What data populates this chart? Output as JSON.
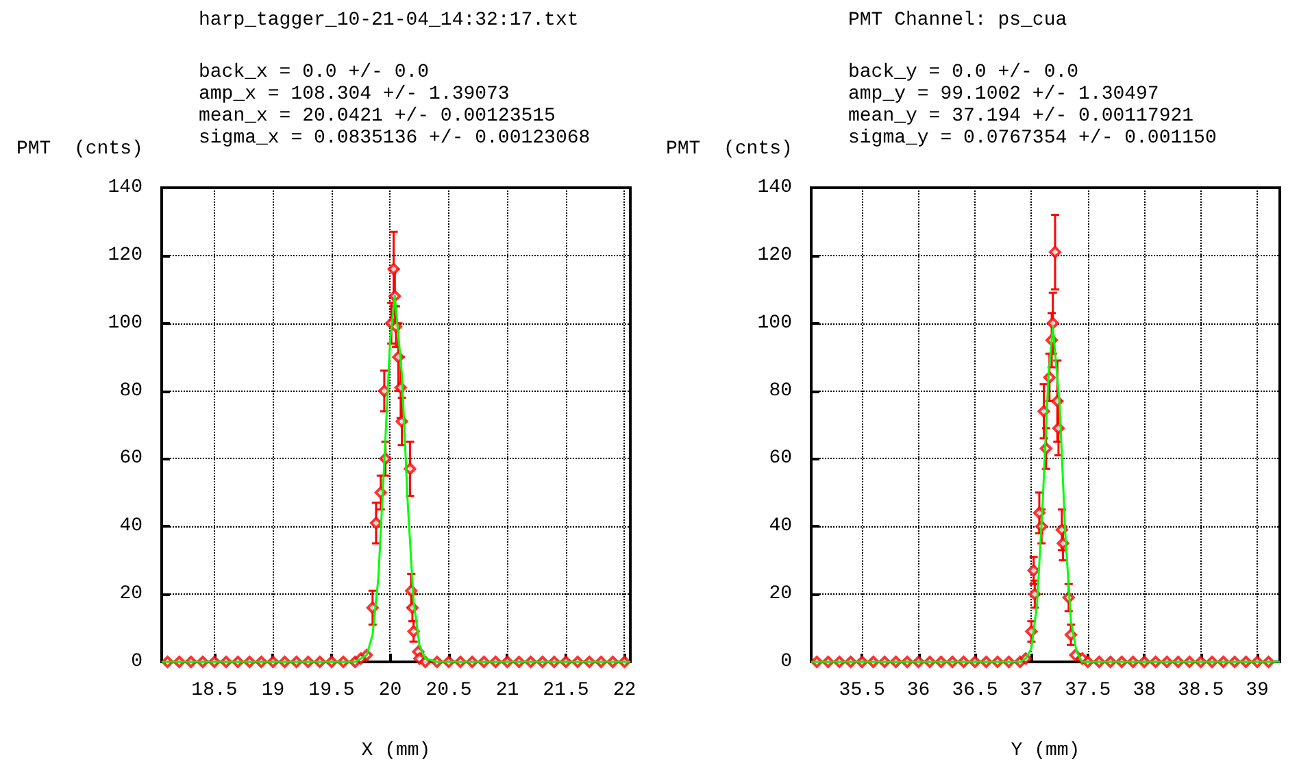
{
  "chart_data": [
    {
      "type": "scatter",
      "title": "harp_tagger_10-21-04_14:32:17.txt",
      "annotations": [
        "back_x = 0.0 +/- 0.0",
        "amp_x = 108.304 +/- 1.39073",
        "mean_x = 20.0421 +/- 0.00123515",
        "sigma_x = 0.0835136 +/- 0.00123068"
      ],
      "xlabel": "X (mm)",
      "ylabel": "PMT  (cnts)",
      "xlim": [
        18.05,
        22.05
      ],
      "xticks": [
        18.5,
        19,
        19.5,
        20,
        20.5,
        21,
        21.5,
        22
      ],
      "ylim": [
        0,
        140
      ],
      "yticks": [
        0,
        20,
        40,
        60,
        80,
        100,
        120,
        140
      ],
      "grid": true,
      "marker": "diamond",
      "series": [
        {
          "color": "#ff0000",
          "x": [
            18.1,
            18.2,
            18.3,
            18.4,
            18.5,
            18.6,
            18.7,
            18.8,
            18.9,
            19.0,
            19.1,
            19.2,
            19.3,
            19.4,
            19.5,
            19.6,
            19.7,
            19.75,
            19.8,
            19.85,
            19.88,
            19.92,
            19.95,
            19.96,
            20.01,
            20.03,
            20.04,
            20.05,
            20.07,
            20.09,
            20.1,
            20.17,
            20.18,
            20.19,
            20.2,
            20.24,
            20.25,
            20.3,
            20.4,
            20.5,
            20.6,
            20.7,
            20.8,
            20.9,
            21.0,
            21.1,
            21.2,
            21.3,
            21.4,
            21.5,
            21.6,
            21.7,
            21.8,
            21.9,
            22.0
          ],
          "values": [
            0,
            0,
            0,
            0,
            0,
            0,
            0,
            0,
            0,
            0,
            0,
            0,
            0,
            0,
            0,
            0,
            0,
            1,
            2,
            16,
            41,
            50,
            80,
            60,
            100,
            116,
            108,
            99,
            90,
            81,
            71,
            57,
            21,
            16,
            9,
            3,
            1,
            0,
            0,
            0,
            0,
            0,
            0,
            0,
            0,
            0,
            0,
            0,
            0,
            0,
            0,
            0,
            0,
            0,
            0
          ],
          "errors": [
            null,
            null,
            null,
            null,
            null,
            null,
            null,
            null,
            null,
            null,
            null,
            null,
            null,
            null,
            null,
            null,
            null,
            null,
            null,
            5,
            6,
            5,
            6,
            5,
            6,
            11,
            8,
            6,
            10,
            9,
            7,
            8,
            5,
            4,
            3,
            null,
            null,
            null,
            null,
            null,
            null,
            null,
            null,
            null,
            null,
            null,
            null,
            null,
            null,
            null,
            null,
            null,
            null,
            null,
            null
          ]
        },
        {
          "type": "line",
          "color": "#00ff00",
          "marker": "none",
          "x": [
            18.05,
            19.7,
            19.8,
            19.85,
            19.9,
            19.95,
            20.0,
            20.04,
            20.1,
            20.15,
            20.2,
            20.25,
            20.3,
            20.4,
            22.05
          ],
          "values": [
            0,
            0,
            2,
            8,
            25,
            59,
            95,
            108,
            85,
            47,
            18,
            5,
            1,
            0,
            0
          ]
        }
      ]
    },
    {
      "type": "scatter",
      "title": "PMT Channel: ps_cua",
      "annotations": [
        "back_y = 0.0 +/- 0.0",
        "amp_y = 99.1002 +/- 1.30497",
        "mean_y = 37.194 +/- 0.00117921",
        "sigma_y = 0.0767354 +/- 0.001150"
      ],
      "xlabel": "Y (mm)",
      "ylabel": "PMT  (cnts)",
      "xlim": [
        35.05,
        39.2
      ],
      "xticks": [
        35.5,
        36,
        36.5,
        37,
        37.5,
        38,
        38.5,
        39
      ],
      "ylim": [
        0,
        140
      ],
      "yticks": [
        0,
        20,
        40,
        60,
        80,
        100,
        120,
        140
      ],
      "grid": true,
      "marker": "diamond",
      "series": [
        {
          "color": "#ff0000",
          "x": [
            35.1,
            35.2,
            35.3,
            35.4,
            35.5,
            35.6,
            35.7,
            35.8,
            35.9,
            36.0,
            36.1,
            36.2,
            36.3,
            36.4,
            36.5,
            36.6,
            36.7,
            36.8,
            36.9,
            36.95,
            37.0,
            37.02,
            37.03,
            37.07,
            37.09,
            37.11,
            37.13,
            37.16,
            37.18,
            37.19,
            37.21,
            37.23,
            37.24,
            37.27,
            37.28,
            37.33,
            37.35,
            37.39,
            37.45,
            37.5,
            37.6,
            37.7,
            37.8,
            37.9,
            38.0,
            38.1,
            38.2,
            38.3,
            38.4,
            38.5,
            38.6,
            38.7,
            38.8,
            38.9,
            39.0,
            39.1
          ],
          "values": [
            0,
            0,
            0,
            0,
            0,
            0,
            0,
            0,
            0,
            0,
            0,
            0,
            0,
            0,
            0,
            0,
            0,
            0,
            0,
            1,
            9,
            27,
            20,
            44,
            40,
            74,
            63,
            84,
            95,
            100,
            121,
            77,
            69,
            39,
            35,
            19,
            8,
            2,
            1,
            0,
            0,
            0,
            0,
            0,
            0,
            0,
            0,
            0,
            0,
            0,
            0,
            0,
            0,
            0,
            0,
            0
          ],
          "errors": [
            null,
            null,
            null,
            null,
            null,
            null,
            null,
            null,
            null,
            null,
            null,
            null,
            null,
            null,
            null,
            null,
            null,
            null,
            null,
            null,
            3,
            4,
            4,
            6,
            5,
            8,
            6,
            7,
            8,
            9,
            11,
            12,
            8,
            6,
            5,
            4,
            3,
            null,
            null,
            null,
            null,
            null,
            null,
            null,
            null,
            null,
            null,
            null,
            null,
            null,
            null,
            null,
            null,
            null,
            null,
            null
          ]
        },
        {
          "type": "line",
          "color": "#00ff00",
          "marker": "none",
          "x": [
            35.05,
            36.9,
            36.95,
            37.0,
            37.05,
            37.1,
            37.15,
            37.19,
            37.25,
            37.3,
            37.35,
            37.4,
            37.45,
            37.5,
            39.2
          ],
          "values": [
            0,
            0,
            1,
            4,
            17,
            47,
            84,
            99,
            76,
            38,
            12,
            3,
            0,
            0,
            0
          ]
        }
      ]
    }
  ]
}
